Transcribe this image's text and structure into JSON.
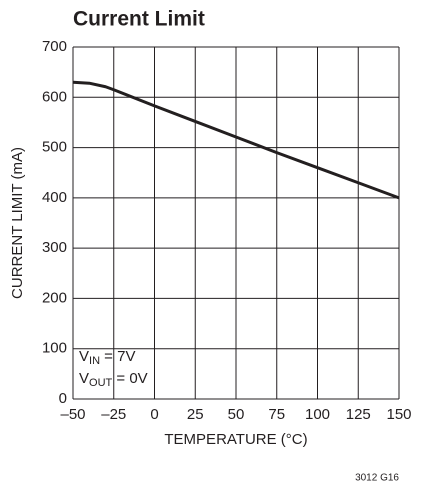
{
  "chart_data": {
    "type": "line",
    "title": "Current Limit",
    "xlabel": "TEMPERATURE (°C)",
    "ylabel": "CURRENT LIMIT (mA)",
    "x": [
      -50,
      -40,
      -30,
      -25,
      0,
      25,
      50,
      75,
      100,
      125,
      150
    ],
    "series": [
      {
        "name": "Current Limit",
        "color": "#231f20",
        "values": [
          630,
          628,
          621,
          615,
          583,
          552,
          521,
          490,
          460,
          430,
          400
        ]
      }
    ],
    "xlim": [
      -50,
      150
    ],
    "xticks": [
      {
        "value": -50,
        "label": "–50"
      },
      {
        "value": -25,
        "label": "–25"
      },
      0,
      25,
      50,
      75,
      100,
      125,
      150
    ],
    "ylim": [
      0,
      700
    ],
    "yticks": [
      0,
      100,
      200,
      300,
      400,
      500,
      600,
      700
    ],
    "grid": true,
    "annotations": [
      [
        "V",
        "IN",
        " = 7V"
      ],
      [
        "V",
        "OUT",
        " = 0V"
      ]
    ],
    "footnote": "3012 G16"
  }
}
